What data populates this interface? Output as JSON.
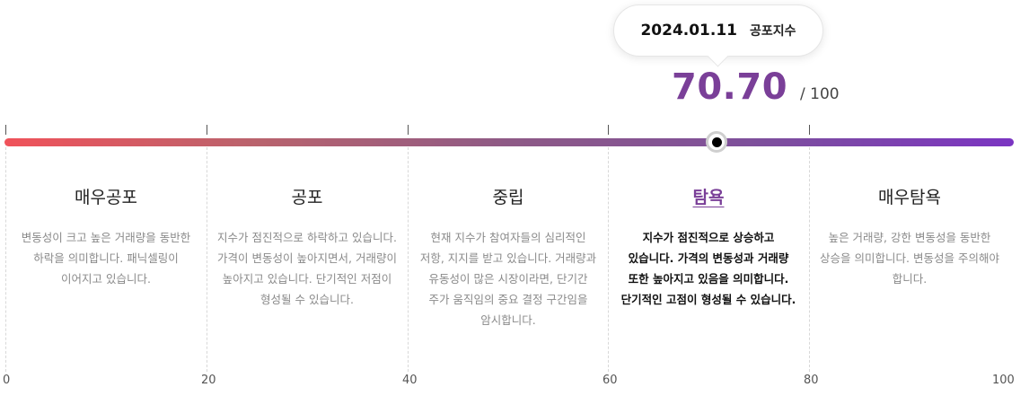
{
  "tooltip": {
    "date": "2024.01.11",
    "label": "공포지수"
  },
  "score": {
    "value": "70.70",
    "max": "/ 100",
    "value_numeric": 70.7,
    "range_max": 100
  },
  "colors": {
    "accent": "#7a3f98",
    "gradient_start": "#f0525a",
    "gradient_end": "#7b35c2"
  },
  "zones": [
    {
      "title": "매우공포",
      "desc": "변동성이 크고 높은 거래량을 동반한 하락을 의미합니다. 패닉셀링이 이어지고 있습니다."
    },
    {
      "title": "공포",
      "desc": "지수가 점진적으로 하락하고 있습니다. 가격이 변동성이 높아지면서, 거래량이 높아지고 있습니다. 단기적인 저점이 형성될 수 있습니다."
    },
    {
      "title": "중립",
      "desc": "현재 지수가 참여자들의 심리적인 저항, 지지를 받고 있습니다. 거래량과 유동성이 많은 시장이라면, 단기간 주가 움직임의 중요 결정 구간임을 암시합니다."
    },
    {
      "title": "탐욕",
      "desc": "지수가 점진적으로 상승하고 있습니다. 가격의 변동성과 거래량 또한 높아지고 있음을 의미합니다. 단기적인 고점이 형성될 수 있습니다.",
      "active": true
    },
    {
      "title": "매우탐욕",
      "desc": "높은 거래량, 강한 변동성을 동반한 상승을 의미합니다. 변동성을 주의해야 합니다."
    }
  ],
  "axis": [
    "0",
    "20",
    "40",
    "60",
    "80",
    "100"
  ]
}
